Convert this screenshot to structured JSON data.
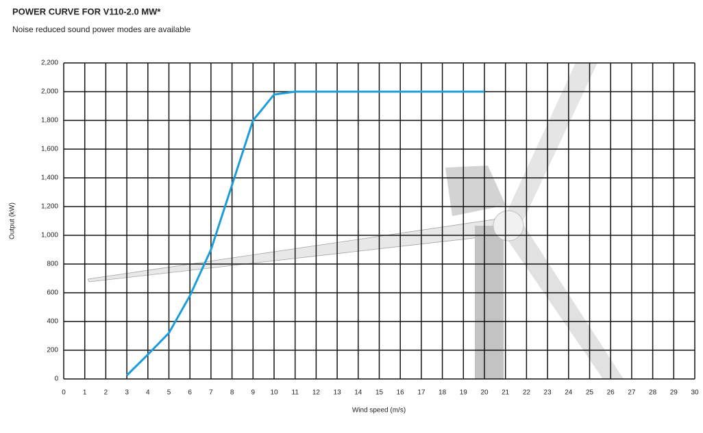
{
  "chart_data": {
    "type": "line",
    "title": "POWER CURVE FOR V110-2.0 MW*",
    "subtitle": "Noise reduced sound power modes are available",
    "x_label": "Wind speed (m/s)",
    "y_label": "Output (kW)",
    "x": [
      3,
      4,
      5,
      6,
      7,
      8,
      9,
      10,
      11,
      12,
      13,
      14,
      15,
      16,
      17,
      18,
      19,
      20
    ],
    "series": [
      {
        "name": "V110-2.0 MW",
        "color": "#1b9ddb",
        "values": [
          25,
          170,
          320,
          580,
          900,
          1350,
          1800,
          1980,
          2000,
          2000,
          2000,
          2000,
          2000,
          2000,
          2000,
          2000,
          2000,
          2000
        ]
      }
    ],
    "xlim": [
      0,
      30
    ],
    "xticks": [
      0,
      1,
      2,
      3,
      4,
      5,
      6,
      7,
      8,
      9,
      10,
      11,
      12,
      13,
      14,
      15,
      16,
      17,
      18,
      19,
      20,
      21,
      22,
      23,
      24,
      25,
      26,
      27,
      28,
      29,
      30
    ],
    "ylim": [
      0,
      2200
    ],
    "yticks": [
      0,
      200,
      400,
      600,
      800,
      {
        "value": 1000,
        "label": "1,000"
      },
      {
        "value": 1200,
        "label": "1,200"
      },
      {
        "value": 1400,
        "label": "1,400"
      },
      {
        "value": 1600,
        "label": "1,600"
      },
      {
        "value": 1800,
        "label": "1,800"
      },
      {
        "value": 2000,
        "label": "2,000"
      },
      {
        "value": 2200,
        "label": "2,200"
      }
    ],
    "grid": true
  }
}
